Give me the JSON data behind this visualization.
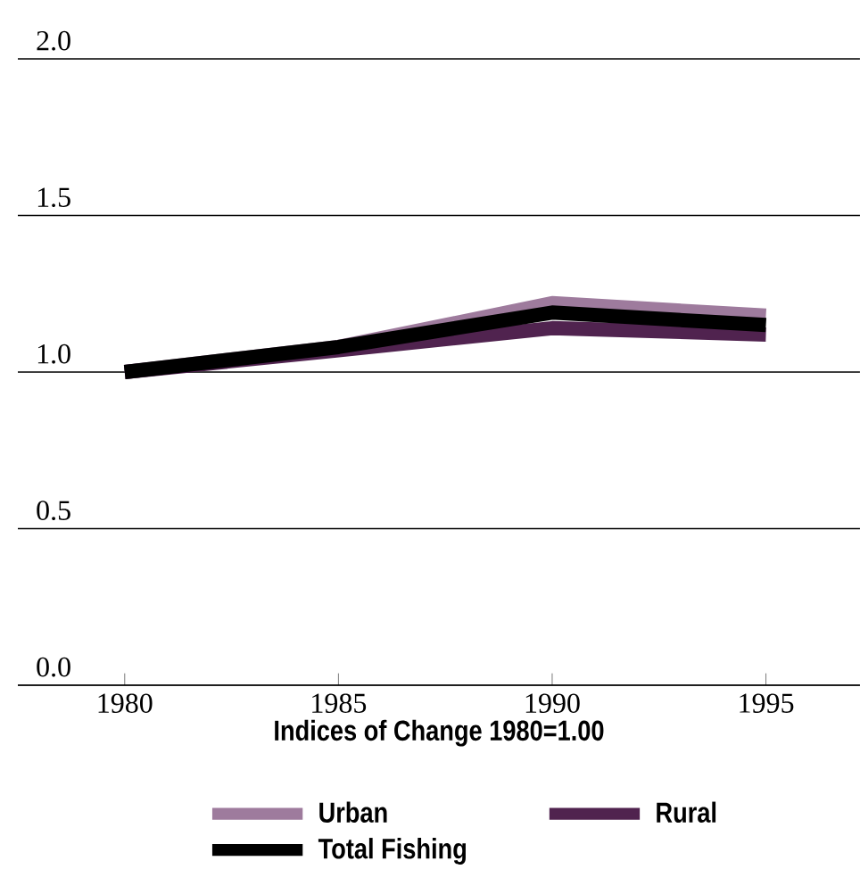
{
  "chart_data": {
    "type": "line",
    "xlabel": "Indices of Change 1980=1.00",
    "x": [
      1980,
      1985,
      1990,
      1995
    ],
    "series": [
      {
        "name": "Urban",
        "color": "#9e7b9d",
        "values": [
          1.0,
          1.08,
          1.22,
          1.18
        ]
      },
      {
        "name": "Rural",
        "color": "#50234f",
        "values": [
          1.0,
          1.07,
          1.14,
          1.12
        ]
      },
      {
        "name": "Total Fishing",
        "color": "#000000",
        "values": [
          1.0,
          1.08,
          1.19,
          1.15
        ]
      }
    ],
    "xlim": [
      1977.5,
      1997.2
    ],
    "xticks": [
      1980,
      1985,
      1990,
      1995
    ],
    "ylim": [
      0,
      2
    ],
    "yticks": [
      {
        "value": 0,
        "label": "0.0"
      },
      {
        "value": 0.5,
        "label": "0.5"
      },
      {
        "value": 1,
        "label": "1.0"
      },
      {
        "value": 1.5,
        "label": "1.5"
      },
      {
        "value": 2,
        "label": "2.0"
      }
    ],
    "grid": "y",
    "legend": "bottom",
    "line_style": "solid",
    "marker": "none"
  }
}
